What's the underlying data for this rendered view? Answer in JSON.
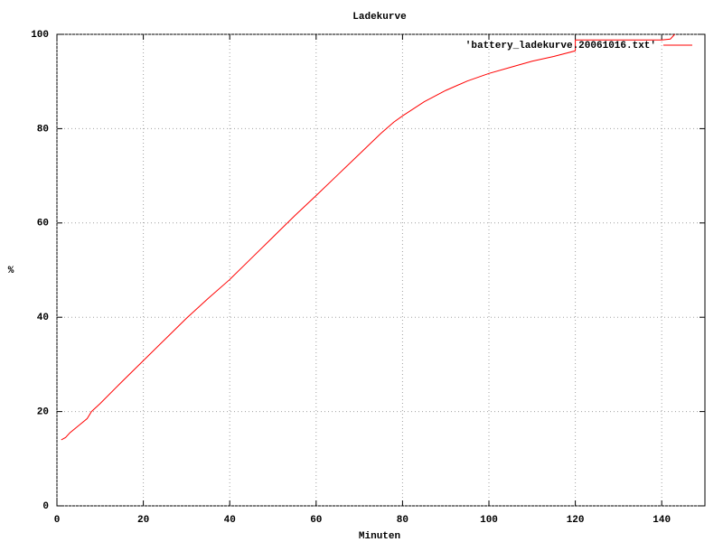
{
  "chart_data": {
    "type": "line",
    "title": "Ladekurve",
    "x_label": "Minuten",
    "y_label": "%",
    "x": [
      1,
      2,
      3,
      5,
      7,
      8,
      10,
      15,
      20,
      25,
      30,
      35,
      40,
      45,
      50,
      55,
      60,
      65,
      70,
      75,
      78,
      80,
      85,
      90,
      95,
      100,
      105,
      110,
      115,
      120,
      120,
      125,
      130,
      135,
      140,
      142,
      143
    ],
    "series": [
      {
        "name": "'battery_ladekurve.20061016.txt'",
        "color": "#ff0000",
        "values": [
          14,
          14.5,
          15.5,
          17,
          18.5,
          20,
          21.7,
          26.3,
          30.8,
          35.3,
          39.8,
          44,
          48,
          52.5,
          57,
          61.5,
          65.8,
          70.2,
          74.6,
          79,
          81.4,
          82.7,
          85.7,
          88.1,
          90.1,
          91.7,
          93,
          94.3,
          95.3,
          96.5,
          98.8,
          98.8,
          98.8,
          98.8,
          98.8,
          99,
          100
        ]
      }
    ],
    "xlim": [
      0,
      150
    ],
    "ylim": [
      0,
      100
    ],
    "xticks": [
      0,
      20,
      40,
      60,
      80,
      100,
      120,
      140
    ],
    "yticks": [
      0,
      20,
      40,
      60,
      80,
      100
    ],
    "grid": true,
    "legend": "top-right"
  }
}
